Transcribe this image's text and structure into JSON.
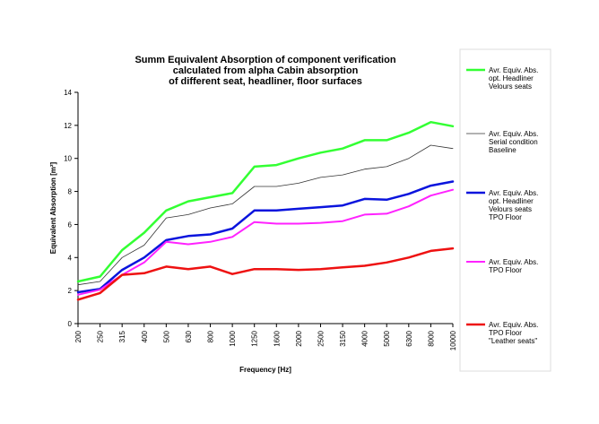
{
  "chart_data": {
    "type": "line",
    "title_lines": [
      "Summ Equivalent Absorption of component verification",
      "calculated from alpha Cabin absorption",
      "of different seat, headliner, floor surfaces"
    ],
    "xlabel": "Frequency [Hz]",
    "ylabel": "Equivalent Absorption [m²]",
    "categories": [
      "200",
      "250",
      "315",
      "400",
      "500",
      "630",
      "800",
      "1000",
      "1250",
      "1600",
      "2000",
      "2500",
      "3150",
      "4000",
      "5000",
      "6300",
      "8000",
      "10000"
    ],
    "ylim": [
      0,
      14
    ],
    "yticks": [
      "0",
      "2",
      "4",
      "6",
      "8",
      "10",
      "12",
      "14"
    ],
    "grid": false,
    "legend_position": "right",
    "series": [
      {
        "name_lines": [
          "Avr. Equiv. Abs.",
          "opt. Headliner",
          "Velours seats"
        ],
        "color": "#33ff33",
        "width": 2.5,
        "values": [
          2.55,
          2.85,
          4.45,
          5.5,
          6.85,
          7.4,
          7.65,
          7.9,
          9.5,
          9.6,
          10.0,
          10.35,
          10.6,
          11.1,
          11.1,
          11.55,
          12.2,
          11.95
        ]
      },
      {
        "name_lines": [
          "Avr. Equiv. Abs.",
          "Serial condition",
          "Baseline"
        ],
        "color": "#333333",
        "width": 0.8,
        "values": [
          2.35,
          2.55,
          4.0,
          4.75,
          6.4,
          6.6,
          7.0,
          7.25,
          8.3,
          8.3,
          8.5,
          8.85,
          9.0,
          9.35,
          9.5,
          10.0,
          10.8,
          10.6
        ]
      },
      {
        "name_lines": [
          "Avr. Equiv. Abs.",
          "opt. Headliner",
          "Velours seats",
          "TPO Floor"
        ],
        "color": "#0a14dd",
        "width": 2.5,
        "values": [
          1.9,
          2.1,
          3.25,
          4.0,
          5.05,
          5.3,
          5.4,
          5.75,
          6.85,
          6.85,
          6.95,
          7.05,
          7.15,
          7.55,
          7.5,
          7.85,
          8.35,
          8.6
        ]
      },
      {
        "name_lines": [
          "Avr. Equiv. Abs.",
          "TPO Floor"
        ],
        "color": "#ff22ff",
        "width": 2,
        "values": [
          1.75,
          2.05,
          2.95,
          3.7,
          4.95,
          4.8,
          4.95,
          5.25,
          6.15,
          6.05,
          6.05,
          6.1,
          6.2,
          6.6,
          6.65,
          7.1,
          7.75,
          8.1
        ]
      },
      {
        "name_lines": [
          "Avr. Equiv. Abs.",
          "TPO Floor",
          "\"Leather seats\""
        ],
        "color": "#ee1111",
        "width": 2.5,
        "values": [
          1.45,
          1.85,
          2.95,
          3.05,
          3.45,
          3.3,
          3.45,
          3.0,
          3.3,
          3.3,
          3.25,
          3.3,
          3.4,
          3.5,
          3.7,
          4.0,
          4.4,
          4.55
        ]
      }
    ]
  }
}
